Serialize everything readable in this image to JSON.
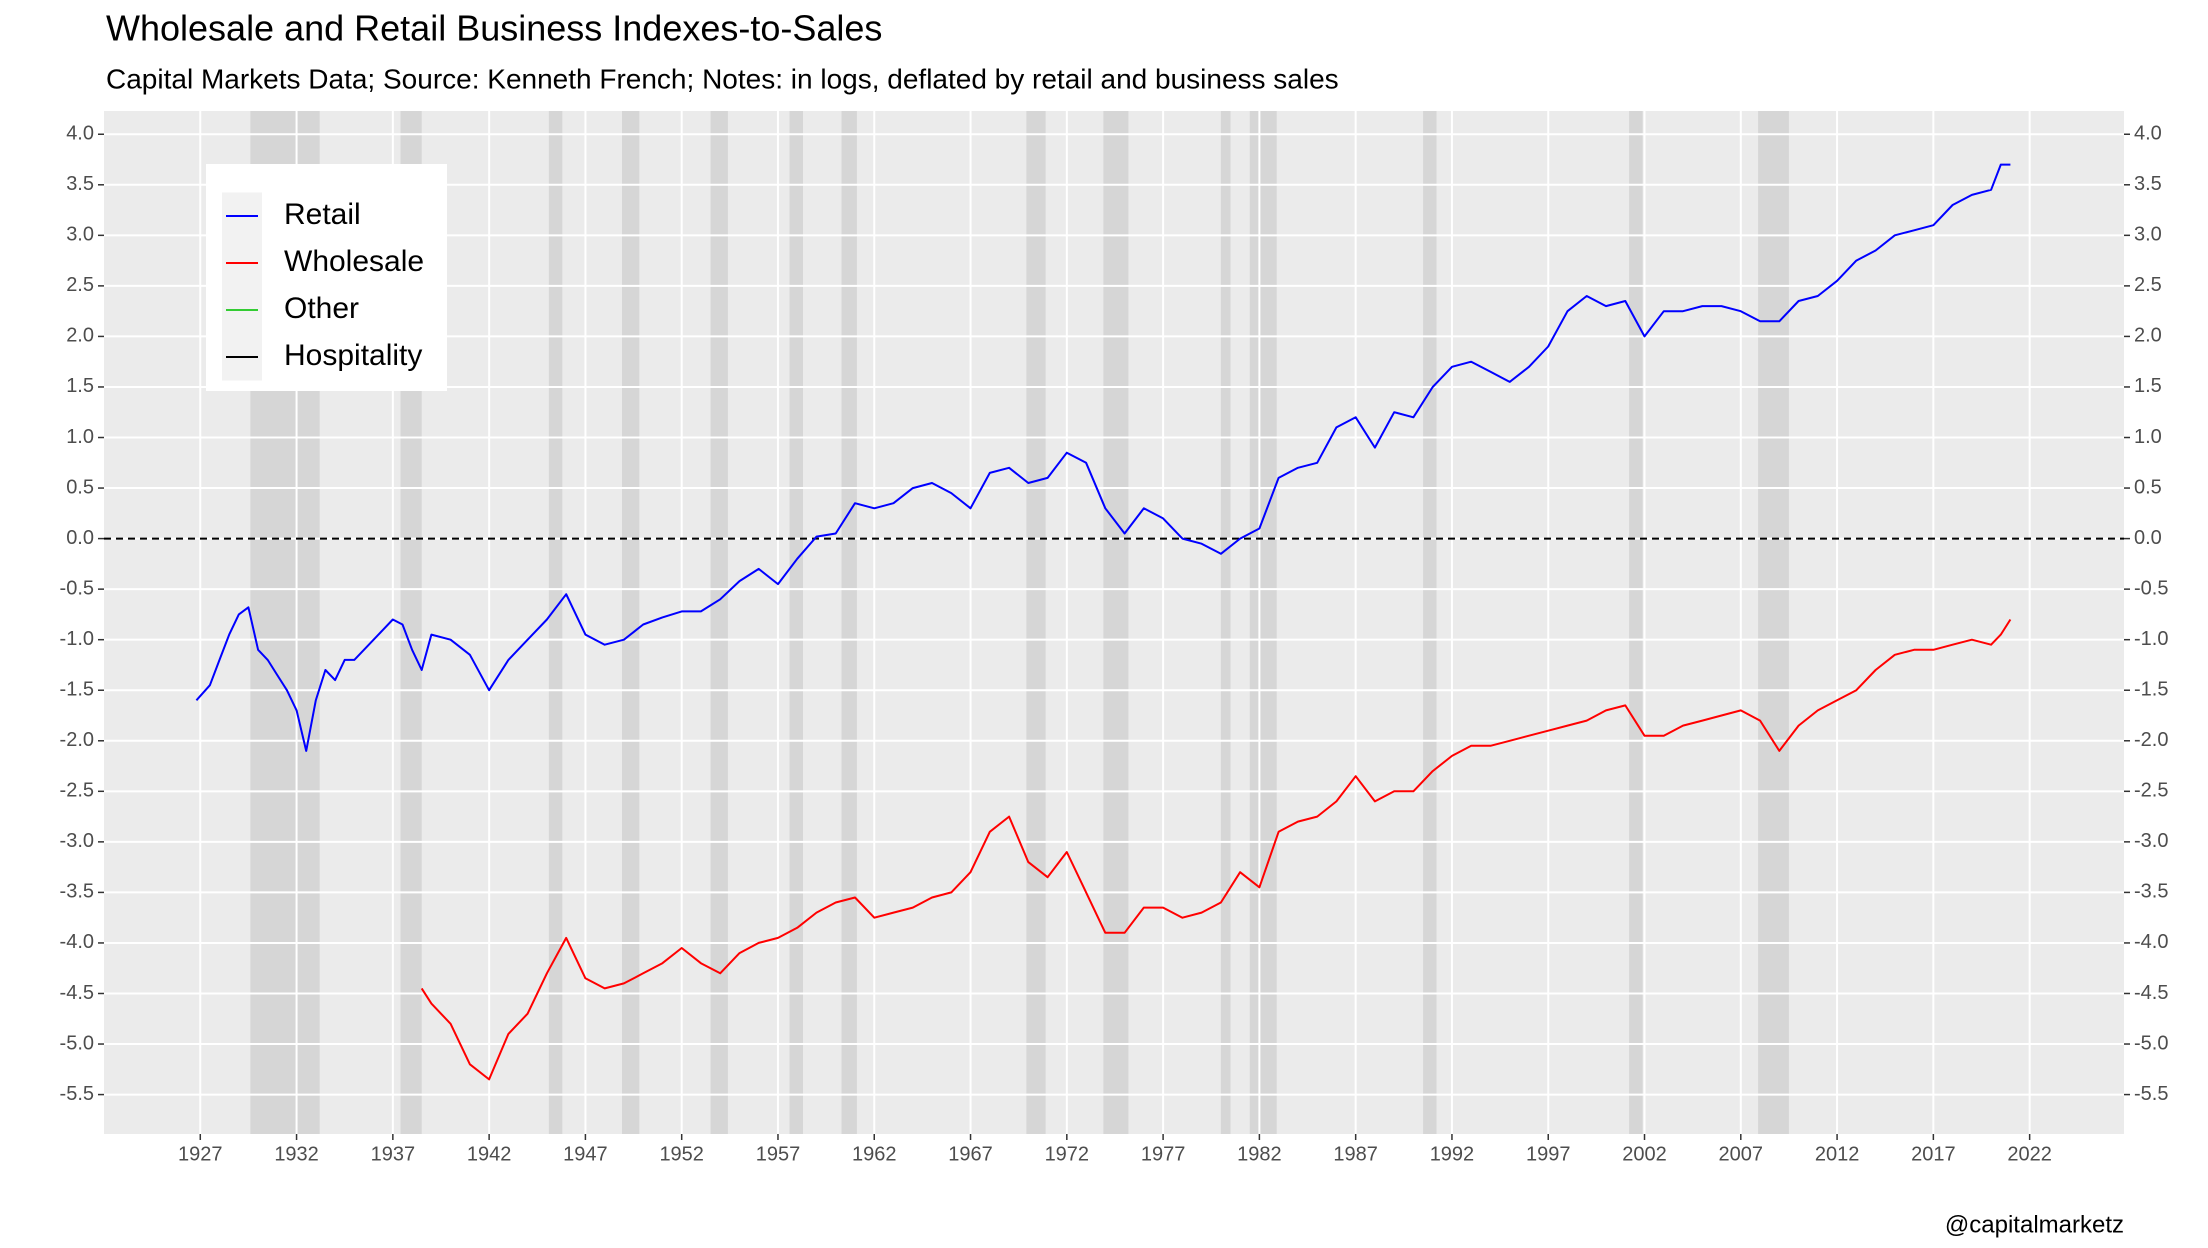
{
  "chart_data": {
    "type": "line",
    "title": "Wholesale and Retail Business Indexes-to-Sales",
    "subtitle": "Capital Markets Data; Source: Kenneth French; Notes: in logs, deflated by retail and business sales",
    "caption": "@capitalmarketz",
    "xlim": [
      1922,
      2026.9
    ],
    "ylim": [
      -5.89,
      4.23
    ],
    "xticks": [
      1927,
      1932,
      1937,
      1942,
      1947,
      1952,
      1957,
      1962,
      1967,
      1972,
      1977,
      1982,
      1987,
      1992,
      1997,
      2002,
      2007,
      2012,
      2017,
      2022
    ],
    "yticks": [
      {
        "value": 4,
        "label": "4.0"
      },
      {
        "value": 3.5,
        "label": "3.5"
      },
      {
        "value": 3,
        "label": "3.0"
      },
      {
        "value": 2.5,
        "label": "2.5"
      },
      {
        "value": 2,
        "label": "2.0"
      },
      {
        "value": 1.5,
        "label": "1.5"
      },
      {
        "value": 1,
        "label": "1.0"
      },
      {
        "value": 0.5,
        "label": "0.5"
      },
      {
        "value": 0,
        "label": "0.0"
      },
      {
        "value": -0.5,
        "label": "-0.5"
      },
      {
        "value": -1,
        "label": "-1.0"
      },
      {
        "value": -1.5,
        "label": "-1.5"
      },
      {
        "value": -2,
        "label": "-2.0"
      },
      {
        "value": -2.5,
        "label": "-2.5"
      },
      {
        "value": -3,
        "label": "-3.0"
      },
      {
        "value": -3.5,
        "label": "-3.5"
      },
      {
        "value": -4,
        "label": "-4.0"
      },
      {
        "value": -4.5,
        "label": "-4.5"
      },
      {
        "value": -5,
        "label": "-5.0"
      },
      {
        "value": -5.5,
        "label": "-5.5"
      }
    ],
    "grid": true,
    "secondary_axis_mirror": true,
    "hline": 0,
    "legend_position": "top-left",
    "shaded_periods": [
      [
        1929.6,
        1933.2
      ],
      [
        1937.4,
        1938.5
      ],
      [
        1945.1,
        1945.8
      ],
      [
        1948.9,
        1949.8
      ],
      [
        1953.5,
        1954.4
      ],
      [
        1957.6,
        1958.3
      ],
      [
        1960.3,
        1961.1
      ],
      [
        1969.9,
        1970.9
      ],
      [
        1973.9,
        1975.2
      ],
      [
        1980.0,
        1980.5
      ],
      [
        1981.5,
        1982.9
      ],
      [
        1990.5,
        1991.2
      ],
      [
        2001.2,
        2001.9
      ],
      [
        2007.9,
        2009.5
      ]
    ],
    "series": [
      {
        "name": "Retail",
        "color": "#0000ff",
        "x": [
          1926.8,
          1927.5,
          1928,
          1928.5,
          1929,
          1929.5,
          1930,
          1930.5,
          1931,
          1931.5,
          1932,
          1932.5,
          1933,
          1933.5,
          1934,
          1934.5,
          1935,
          1936,
          1937,
          1937.5,
          1938,
          1938.5,
          1939,
          1940,
          1941,
          1942,
          1943,
          1944,
          1945,
          1946,
          1947,
          1948,
          1949,
          1950,
          1951,
          1952,
          1953,
          1954,
          1955,
          1956,
          1957,
          1958,
          1959,
          1960,
          1961,
          1962,
          1963,
          1964,
          1965,
          1966,
          1967,
          1968,
          1969,
          1970,
          1971,
          1972,
          1973,
          1974,
          1975,
          1976,
          1977,
          1978,
          1979,
          1980,
          1981,
          1982,
          1983,
          1984,
          1985,
          1986,
          1987,
          1988,
          1989,
          1990,
          1991,
          1992,
          1993,
          1994,
          1995,
          1996,
          1997,
          1998,
          1999,
          2000,
          2001,
          2002,
          2003,
          2004,
          2005,
          2006,
          2007,
          2008,
          2009,
          2010,
          2011,
          2012,
          2013,
          2014,
          2015,
          2016,
          2017,
          2018,
          2019,
          2020,
          2020.5,
          2021
        ],
        "values": [
          -1.6,
          -1.45,
          -1.2,
          -0.95,
          -0.75,
          -0.68,
          -1.1,
          -1.2,
          -1.35,
          -1.5,
          -1.7,
          -2.1,
          -1.6,
          -1.3,
          -1.4,
          -1.2,
          -1.2,
          -1.0,
          -0.8,
          -0.85,
          -1.1,
          -1.3,
          -0.95,
          -1.0,
          -1.15,
          -1.5,
          -1.2,
          -1.0,
          -0.8,
          -0.55,
          -0.95,
          -1.05,
          -1.0,
          -0.85,
          -0.78,
          -0.72,
          -0.72,
          -0.6,
          -0.42,
          -0.3,
          -0.45,
          -0.2,
          0.02,
          0.05,
          0.35,
          0.3,
          0.35,
          0.5,
          0.55,
          0.45,
          0.3,
          0.65,
          0.7,
          0.55,
          0.6,
          0.85,
          0.75,
          0.3,
          0.05,
          0.3,
          0.2,
          0.0,
          -0.05,
          -0.15,
          0.0,
          0.1,
          0.6,
          0.7,
          0.75,
          1.1,
          1.2,
          0.9,
          1.25,
          1.2,
          1.5,
          1.7,
          1.75,
          1.65,
          1.55,
          1.7,
          1.9,
          2.25,
          2.4,
          2.3,
          2.35,
          2.0,
          2.25,
          2.25,
          2.3,
          2.3,
          2.25,
          2.15,
          2.15,
          2.35,
          2.4,
          2.55,
          2.75,
          2.85,
          3.0,
          3.05,
          3.1,
          3.3,
          3.4,
          3.45,
          3.7,
          3.7
        ]
      },
      {
        "name": "Wholesale",
        "color": "#ff0000",
        "x": [
          1938.5,
          1939,
          1940,
          1941,
          1942,
          1943,
          1944,
          1945,
          1946,
          1947,
          1948,
          1949,
          1950,
          1951,
          1952,
          1953,
          1954,
          1955,
          1956,
          1957,
          1958,
          1959,
          1960,
          1961,
          1962,
          1963,
          1964,
          1965,
          1966,
          1967,
          1968,
          1969,
          1970,
          1971,
          1972,
          1973,
          1974,
          1975,
          1976,
          1977,
          1978,
          1979,
          1980,
          1981,
          1982,
          1983,
          1984,
          1985,
          1986,
          1987,
          1988,
          1989,
          1990,
          1991,
          1992,
          1993,
          1994,
          1995,
          1996,
          1997,
          1998,
          1999,
          2000,
          2001,
          2002,
          2003,
          2004,
          2005,
          2006,
          2007,
          2008,
          2009,
          2010,
          2011,
          2012,
          2013,
          2014,
          2015,
          2016,
          2017,
          2018,
          2019,
          2020,
          2020.5,
          2021
        ],
        "values": [
          -4.45,
          -4.6,
          -4.8,
          -5.2,
          -5.35,
          -4.9,
          -4.7,
          -4.3,
          -3.95,
          -4.35,
          -4.45,
          -4.4,
          -4.3,
          -4.2,
          -4.05,
          -4.2,
          -4.3,
          -4.1,
          -4.0,
          -3.95,
          -3.85,
          -3.7,
          -3.6,
          -3.55,
          -3.75,
          -3.7,
          -3.65,
          -3.55,
          -3.5,
          -3.3,
          -2.9,
          -2.75,
          -3.2,
          -3.35,
          -3.1,
          -3.5,
          -3.9,
          -3.9,
          -3.65,
          -3.65,
          -3.75,
          -3.7,
          -3.6,
          -3.3,
          -3.45,
          -2.9,
          -2.8,
          -2.75,
          -2.6,
          -2.35,
          -2.6,
          -2.5,
          -2.5,
          -2.3,
          -2.15,
          -2.05,
          -2.05,
          -2.0,
          -1.95,
          -1.9,
          -1.85,
          -1.8,
          -1.7,
          -1.65,
          -1.95,
          -1.95,
          -1.85,
          -1.8,
          -1.75,
          -1.7,
          -1.8,
          -2.1,
          -1.85,
          -1.7,
          -1.6,
          -1.5,
          -1.3,
          -1.15,
          -1.1,
          -1.1,
          -1.05,
          -1.0,
          -1.05,
          -0.95,
          -0.8
        ]
      },
      {
        "name": "Other",
        "color": "#33cc33",
        "x": [],
        "values": []
      },
      {
        "name": "Hospitality",
        "color": "#000000",
        "x": [],
        "values": []
      }
    ]
  }
}
